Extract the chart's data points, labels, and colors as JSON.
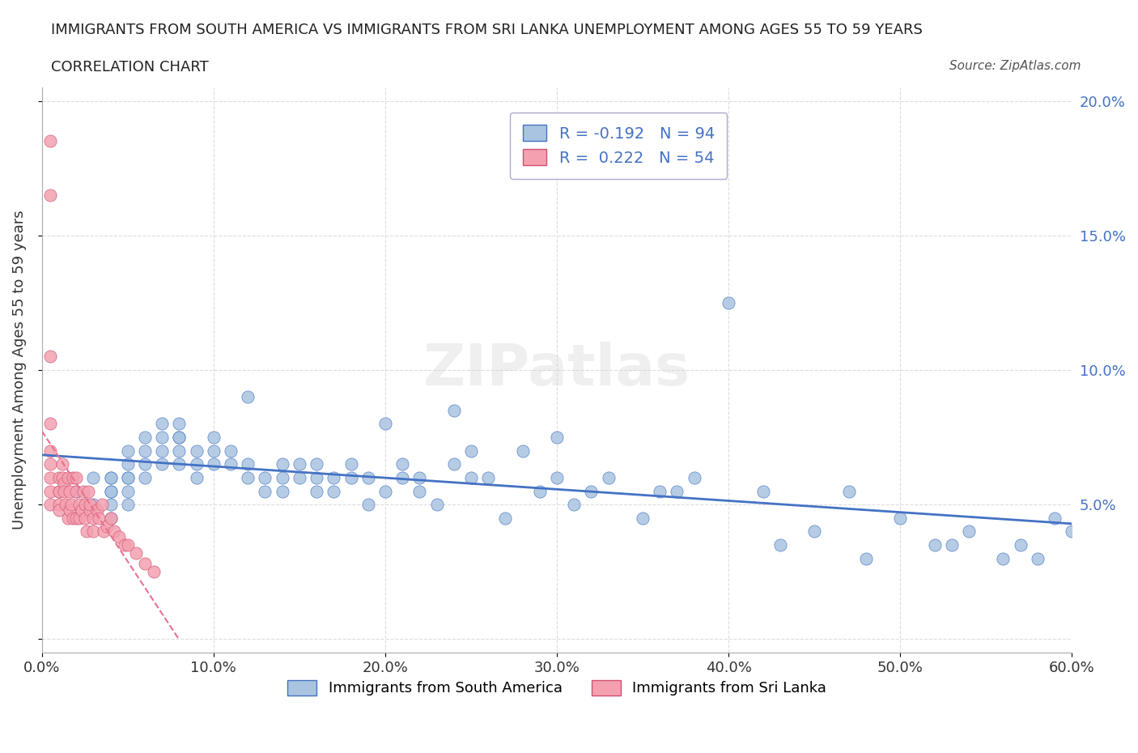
{
  "title_line1": "IMMIGRANTS FROM SOUTH AMERICA VS IMMIGRANTS FROM SRI LANKA UNEMPLOYMENT AMONG AGES 55 TO 59 YEARS",
  "title_line2": "CORRELATION CHART",
  "source": "Source: ZipAtlas.com",
  "xlabel": "",
  "ylabel": "Unemployment Among Ages 55 to 59 years",
  "xlim": [
    0.0,
    0.6
  ],
  "ylim": [
    -0.005,
    0.205
  ],
  "xticks": [
    0.0,
    0.1,
    0.2,
    0.3,
    0.4,
    0.5,
    0.6
  ],
  "yticks": [
    0.0,
    0.05,
    0.1,
    0.15,
    0.2
  ],
  "xtick_labels": [
    "0.0%",
    "10.0%",
    "20.0%",
    "30.0%",
    "40.0%",
    "50.0%",
    "60.0%"
  ],
  "ytick_labels": [
    "",
    "5.0%",
    "10.0%",
    "15.0%",
    "20.0%"
  ],
  "R_south_america": -0.192,
  "N_south_america": 94,
  "R_sri_lanka": 0.222,
  "N_sri_lanka": 54,
  "color_south_america": "#a8c4e0",
  "color_sri_lanka": "#f4a0b0",
  "trend_color_south_america": "#4472c4",
  "trend_color_sri_lanka": "#e87090",
  "watermark": "ZIPatlas",
  "south_america_x": [
    0.02,
    0.03,
    0.03,
    0.04,
    0.04,
    0.04,
    0.04,
    0.04,
    0.04,
    0.05,
    0.05,
    0.05,
    0.05,
    0.05,
    0.05,
    0.06,
    0.06,
    0.06,
    0.06,
    0.07,
    0.07,
    0.07,
    0.07,
    0.08,
    0.08,
    0.08,
    0.08,
    0.08,
    0.09,
    0.09,
    0.09,
    0.1,
    0.1,
    0.1,
    0.11,
    0.11,
    0.12,
    0.12,
    0.12,
    0.13,
    0.13,
    0.14,
    0.14,
    0.14,
    0.15,
    0.15,
    0.16,
    0.16,
    0.16,
    0.17,
    0.17,
    0.18,
    0.18,
    0.19,
    0.19,
    0.2,
    0.2,
    0.21,
    0.21,
    0.22,
    0.22,
    0.23,
    0.24,
    0.24,
    0.25,
    0.25,
    0.26,
    0.27,
    0.28,
    0.29,
    0.3,
    0.3,
    0.31,
    0.32,
    0.33,
    0.35,
    0.36,
    0.37,
    0.38,
    0.4,
    0.42,
    0.43,
    0.45,
    0.47,
    0.48,
    0.5,
    0.52,
    0.53,
    0.54,
    0.56,
    0.57,
    0.58,
    0.59,
    0.6
  ],
  "south_america_y": [
    0.055,
    0.05,
    0.06,
    0.06,
    0.055,
    0.05,
    0.045,
    0.055,
    0.06,
    0.065,
    0.06,
    0.055,
    0.05,
    0.06,
    0.07,
    0.06,
    0.065,
    0.07,
    0.075,
    0.07,
    0.075,
    0.08,
    0.065,
    0.075,
    0.08,
    0.07,
    0.065,
    0.075,
    0.06,
    0.065,
    0.07,
    0.065,
    0.07,
    0.075,
    0.065,
    0.07,
    0.06,
    0.065,
    0.09,
    0.055,
    0.06,
    0.055,
    0.06,
    0.065,
    0.06,
    0.065,
    0.055,
    0.06,
    0.065,
    0.06,
    0.055,
    0.06,
    0.065,
    0.05,
    0.06,
    0.055,
    0.08,
    0.06,
    0.065,
    0.055,
    0.06,
    0.05,
    0.065,
    0.085,
    0.06,
    0.07,
    0.06,
    0.045,
    0.07,
    0.055,
    0.06,
    0.075,
    0.05,
    0.055,
    0.06,
    0.045,
    0.055,
    0.055,
    0.06,
    0.125,
    0.055,
    0.035,
    0.04,
    0.055,
    0.03,
    0.045,
    0.035,
    0.035,
    0.04,
    0.03,
    0.035,
    0.03,
    0.045,
    0.04
  ],
  "sri_lanka_x": [
    0.005,
    0.005,
    0.005,
    0.005,
    0.005,
    0.005,
    0.005,
    0.005,
    0.005,
    0.01,
    0.01,
    0.01,
    0.01,
    0.01,
    0.012,
    0.012,
    0.013,
    0.013,
    0.014,
    0.015,
    0.015,
    0.016,
    0.016,
    0.017,
    0.018,
    0.018,
    0.02,
    0.02,
    0.02,
    0.022,
    0.022,
    0.023,
    0.024,
    0.025,
    0.025,
    0.026,
    0.027,
    0.028,
    0.028,
    0.03,
    0.03,
    0.032,
    0.033,
    0.035,
    0.036,
    0.038,
    0.04,
    0.042,
    0.045,
    0.048,
    0.05,
    0.055,
    0.06,
    0.065
  ],
  "sri_lanka_y": [
    0.185,
    0.165,
    0.105,
    0.08,
    0.07,
    0.065,
    0.06,
    0.055,
    0.05,
    0.055,
    0.05,
    0.048,
    0.055,
    0.06,
    0.065,
    0.06,
    0.058,
    0.055,
    0.05,
    0.045,
    0.06,
    0.048,
    0.055,
    0.05,
    0.045,
    0.06,
    0.045,
    0.055,
    0.06,
    0.045,
    0.05,
    0.048,
    0.055,
    0.045,
    0.05,
    0.04,
    0.055,
    0.048,
    0.05,
    0.045,
    0.04,
    0.048,
    0.045,
    0.05,
    0.04,
    0.042,
    0.045,
    0.04,
    0.038,
    0.035,
    0.035,
    0.032,
    0.028,
    0.025
  ]
}
